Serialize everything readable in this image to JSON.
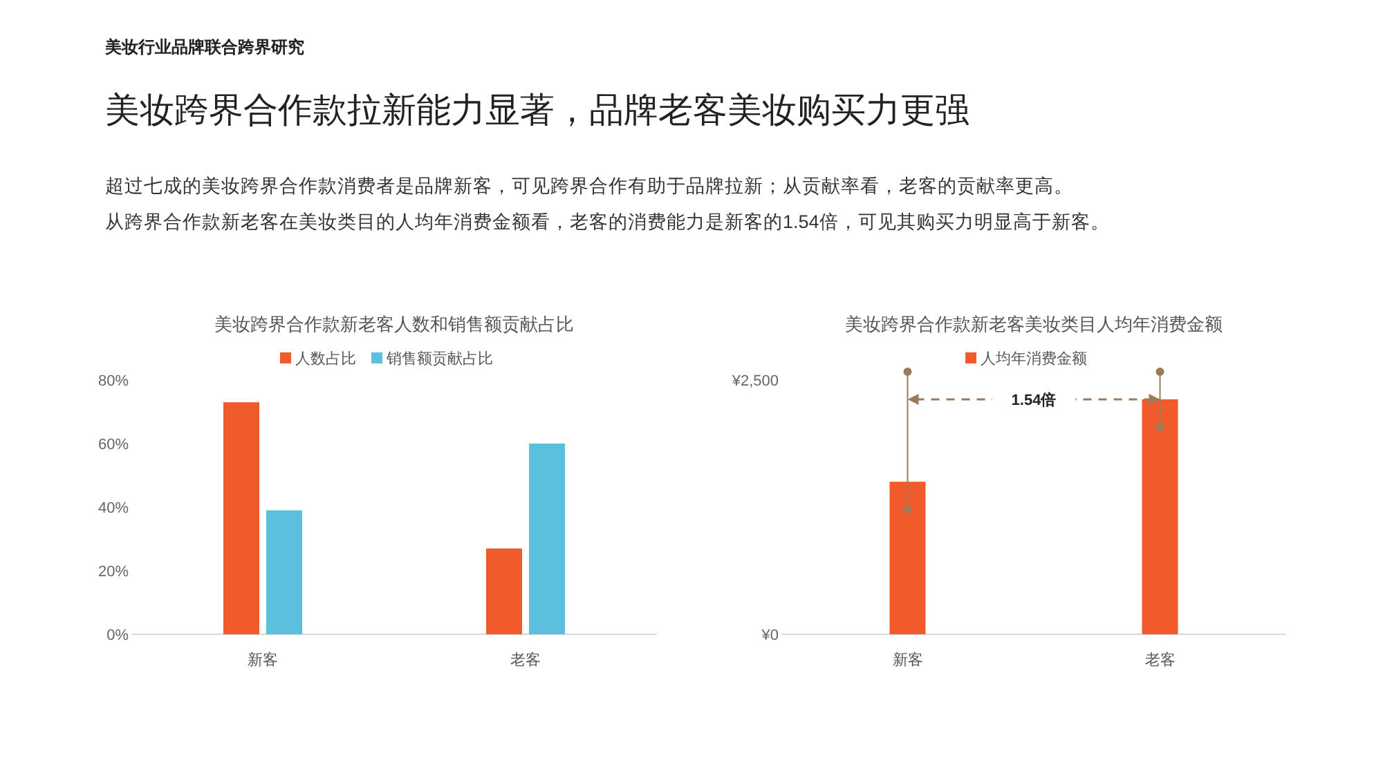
{
  "chart_data": [
    {
      "type": "bar",
      "title": "美妆跨界合作款新老客人数和销售额贡献占比",
      "categories": [
        "新客",
        "老客"
      ],
      "series": [
        {
          "name": "人数占比",
          "color": "#f15a2b",
          "values": [
            73,
            27
          ]
        },
        {
          "name": "销售额贡献占比",
          "color": "#5bc0de",
          "values": [
            39,
            60
          ]
        }
      ],
      "ylim": [
        0,
        80
      ],
      "yticks": [
        {
          "value": 0,
          "label": "0%"
        },
        {
          "value": 20,
          "label": "20%"
        },
        {
          "value": 40,
          "label": "40%"
        },
        {
          "value": 60,
          "label": "60%"
        },
        {
          "value": 80,
          "label": "80%"
        }
      ],
      "legend": "top",
      "grid": false,
      "annotations": [
        "美妆行业品牌联合跨界研究",
        "美妆跨界合作款拉新能力显著，品牌老客美妆购买力更强",
        "超过七成的美妆跨界合作款消费者是品牌新客，可见跨界合作有助于品牌拉新；从贡献率看，老客的贡献率更高。",
        "从跨界合作款新老客在美妆类目的人均年消费金额看，老客的消费能力是新客的1.54倍，可见其购买力明显高于新客。"
      ]
    },
    {
      "type": "bar",
      "title": "美妆跨界合作款新老客美妆类目人均年消费金额",
      "categories": [
        "新客",
        "老客"
      ],
      "series": [
        {
          "name": "人均年消费金额",
          "color": "#f15a2b",
          "values": [
            1500,
            2310
          ]
        }
      ],
      "ylim": [
        0,
        2500
      ],
      "yticks": [
        {
          "value": 0,
          "label": "¥0"
        },
        {
          "value": 2500,
          "label": "¥2,500"
        }
      ],
      "legend": "top",
      "grid": false,
      "annotations": [
        "1.54倍"
      ]
    }
  ]
}
